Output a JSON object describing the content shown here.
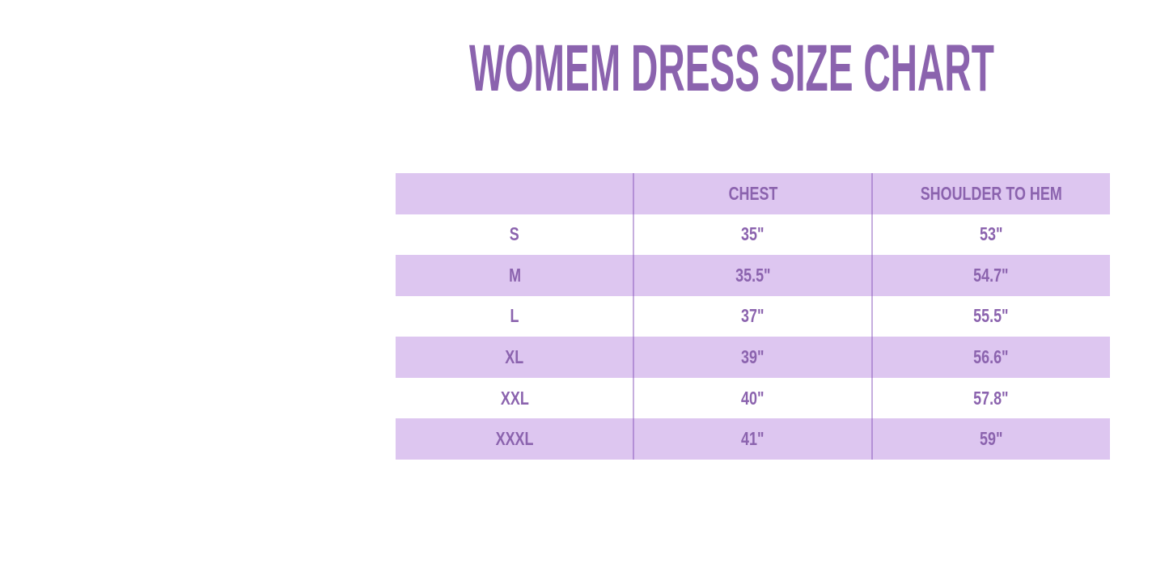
{
  "chart_data": {
    "type": "table",
    "title": "WOMEM DRESS SIZE CHART",
    "columns": [
      "",
      "CHEST",
      "SHOULDER TO HEM"
    ],
    "rows": [
      [
        "S",
        "35\"",
        "53\""
      ],
      [
        "M",
        "35.5\"",
        "54.7\""
      ],
      [
        "L",
        "37\"",
        "55.5\""
      ],
      [
        "XL",
        "39\"",
        "56.6\""
      ],
      [
        "XXL",
        "40\"",
        "57.8\""
      ],
      [
        "XXXL",
        "41\"",
        "59\""
      ]
    ],
    "layout": {
      "legend": "none",
      "grid": "two vertical column dividers only, no outer border",
      "striped_rows": "header, M, XL, XXXL rows lavender; S, L, XXL rows white"
    }
  },
  "colors": {
    "accent_text": "#8b63ae",
    "row_band": "#ddc6f0",
    "divider": "rgba(129,75,181,0.45)",
    "background": "#ffffff"
  }
}
